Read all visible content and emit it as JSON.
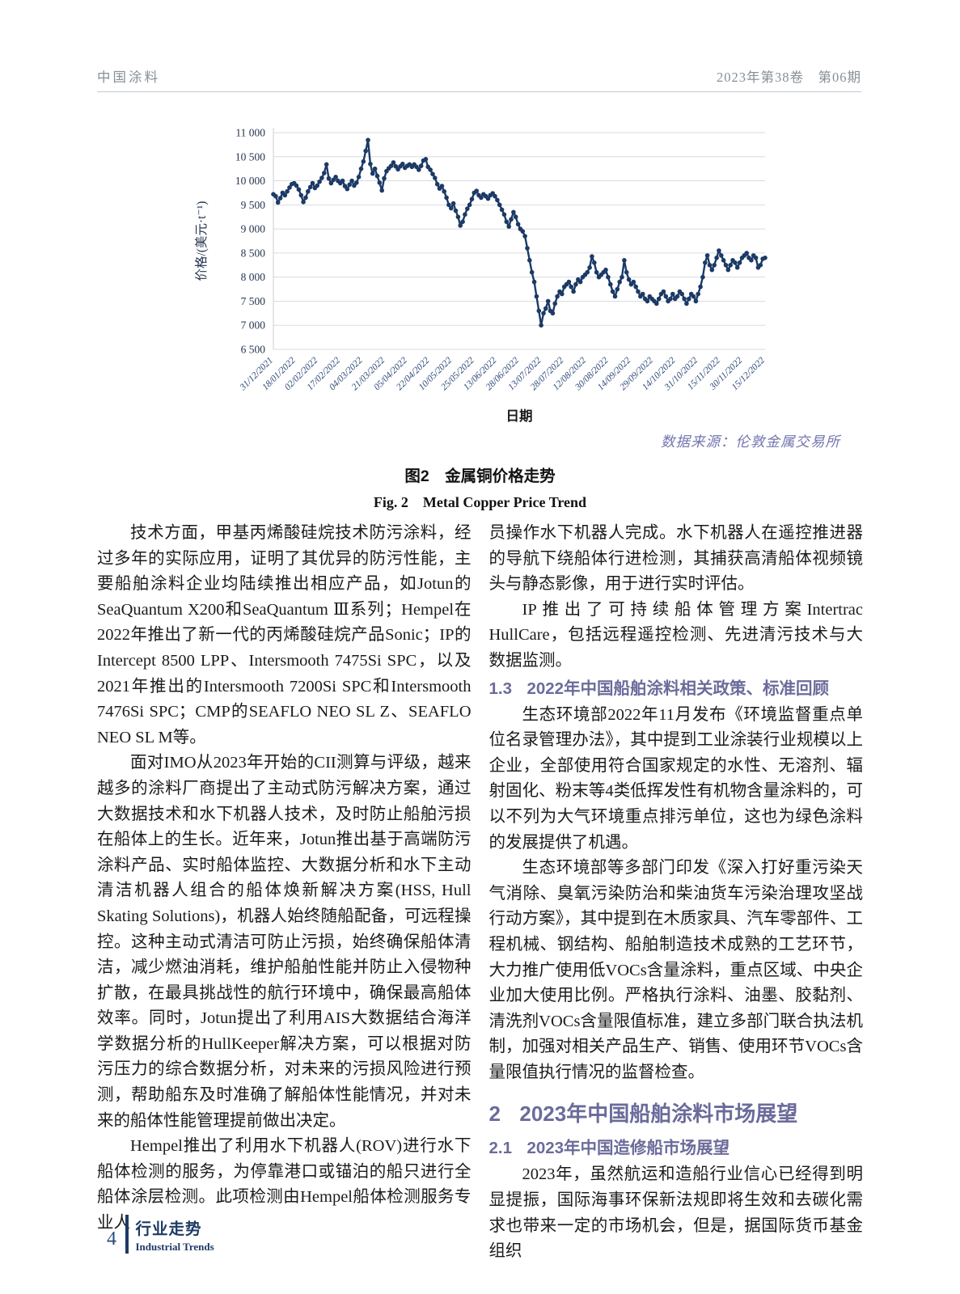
{
  "header": {
    "left": "中国涂料",
    "right": "2023年第38卷　第06期"
  },
  "figure": {
    "source_note": "数据来源：伦敦金属交易所",
    "caption_cn": "图2　金属铜价格走势",
    "caption_en": "Fig. 2　Metal Copper Price Trend"
  },
  "chart_data": {
    "type": "line",
    "title": "金属铜价格走势",
    "xlabel": "日期",
    "ylabel": "价格/(美元·t⁻¹)",
    "ylim": [
      6500,
      11000
    ],
    "ytick_step": 500,
    "ytick_labels": [
      "6 500",
      "7 000",
      "7 500",
      "8 000",
      "8 500",
      "9 000",
      "9 500",
      "10 000",
      "10 500",
      "11 000"
    ],
    "xtick_labels": [
      "31/12/2021",
      "18/01/2022",
      "02/02/2022",
      "17/02/2022",
      "04/03/2022",
      "21/03/2022",
      "05/04/2022",
      "22/04/2022",
      "10/05/2022",
      "25/05/2022",
      "13/06/2022",
      "28/06/2022",
      "13/07/2022",
      "28/07/2022",
      "12/08/2022",
      "30/08/2022",
      "14/09/2022",
      "29/09/2022",
      "14/10/2022",
      "31/10/2022",
      "15/11/2022",
      "30/11/2022",
      "15/12/2022"
    ],
    "grid": true,
    "legend": "none",
    "series": [
      {
        "name": "copper-price",
        "color": "#1c3a66",
        "values": [
          9720,
          9680,
          9550,
          9640,
          9750,
          9700,
          9780,
          9860,
          9930,
          9950,
          9900,
          9820,
          9700,
          9560,
          9650,
          9780,
          9870,
          9950,
          9850,
          9900,
          9980,
          10060,
          10160,
          10340,
          10050,
          9950,
          10020,
          10080,
          10000,
          9950,
          10000,
          9890,
          9830,
          9920,
          10000,
          9900,
          9960,
          10080,
          10250,
          10400,
          10620,
          10845,
          10350,
          10150,
          10250,
          10100,
          9960,
          9800,
          10050,
          10200,
          10260,
          10310,
          10380,
          10300,
          10240,
          10300,
          10350,
          10270,
          10310,
          10340,
          10290,
          10340,
          10290,
          10230,
          10310,
          10420,
          10450,
          10290,
          10230,
          10140,
          10060,
          9930,
          9840,
          9890,
          9780,
          9650,
          9500,
          9430,
          9530,
          9380,
          9250,
          9070,
          9150,
          9300,
          9420,
          9500,
          9620,
          9750,
          9790,
          9700,
          9650,
          9720,
          9680,
          9630,
          9700,
          9740,
          9680,
          9600,
          9500,
          9400,
          9300,
          9150,
          9050,
          9200,
          9350,
          9250,
          9100,
          9000,
          8950,
          8850,
          8600,
          8350,
          8100,
          7900,
          7600,
          7300,
          7000,
          7250,
          7350,
          7500,
          7300,
          7250,
          7450,
          7600,
          7700,
          7650,
          7800,
          7850,
          7900,
          7800,
          7700,
          7850,
          7950,
          7900,
          8000,
          8050,
          8100,
          8200,
          8430,
          8300,
          8100,
          8000,
          8050,
          8100,
          8150,
          8000,
          7850,
          7700,
          7600,
          7750,
          7900,
          8000,
          8350,
          8100,
          7950,
          7850,
          7900,
          7800,
          7700,
          7600,
          7650,
          7550,
          7500,
          7600,
          7550,
          7500,
          7450,
          7550,
          7650,
          7700,
          7600,
          7500,
          7550,
          7650,
          7550,
          7600,
          7700,
          7650,
          7550,
          7450,
          7550,
          7650,
          7600,
          7500,
          7650,
          7800,
          8000,
          8300,
          8450,
          8250,
          8150,
          8250,
          8400,
          8550,
          8450,
          8350,
          8250,
          8150,
          8250,
          8350,
          8300,
          8200,
          8300,
          8400,
          8450,
          8500,
          8400,
          8350,
          8450,
          8400,
          8200,
          8250,
          8380,
          8400
        ]
      }
    ]
  },
  "body": {
    "lc_p1": "技术方面，甲基丙烯酸硅烷技术防污涂料，经过多年的实际应用，证明了其优异的防污性能，主要船舶涂料企业均陆续推出相应产品，如Jotun的SeaQuantum X200和SeaQuantum Ⅲ系列；Hempel在2022年推出了新一代的丙烯酸硅烷产品Sonic；IP的Intercept 8500 LPP、Intersmooth 7475Si SPC，以及2021年推出的Intersmooth 7200Si SPC和Intersmooth 7476Si SPC；CMP的SEAFLO NEO SL Z、SEAFLO NEO SL M等。",
    "lc_p2": "面对IMO从2023年开始的CII测算与评级，越来越多的涂料厂商提出了主动式防污解决方案，通过大数据技术和水下机器人技术，及时防止船舶污损在船体上的生长。近年来，Jotun推出基于高端防污涂料产品、实时船体监控、大数据分析和水下主动清洁机器人组合的船体焕新解决方案(HSS, Hull Skating Solutions)，机器人始终随船配备，可远程操控。这种主动式清洁可防止污损，始终确保船体清洁，减少燃油消耗，维护船舶性能并防止入侵物种扩散，在最具挑战性的航行环境中，确保最高船体效率。同时，Jotun提出了利用AIS大数据结合海洋学数据分析的HullKeeper解决方案，可以根据对防污压力的综合数据分析，对未来的污损风险进行预测，帮助船东及时准确了解船体性能情况，并对未来的船体性能管理提前做出决定。",
    "lc_p3": "Hempel推出了利用水下机器人(ROV)进行水下船体检测的服务，为停靠港口或锚泊的船只进行全船体涂层检测。此项检测由Hempel船体检测服务专业人",
    "rc_p1": "员操作水下机器人完成。水下机器人在遥控推进器的导航下绕船体行进检测，其捕获高清船体视频镜头与静态影像，用于进行实时评估。",
    "rc_p2": "IP推出了可持续船体管理方案Intertrac HullCare，包括远程遥控检测、先进清污技术与大数据监测。",
    "h13": {
      "num": "1.3",
      "text": "2022年中国船舶涂料相关政策、标准回顾"
    },
    "rc_p3": "生态环境部2022年11月发布《环境监督重点单位名录管理办法》，其中提到工业涂装行业规模以上企业，全部使用符合国家规定的水性、无溶剂、辐射固化、粉末等4类低挥发性有机物含量涂料的，可以不列为大气环境重点排污单位，这也为绿色涂料的发展提供了机遇。",
    "rc_p4": "生态环境部等多部门印发《深入打好重污染天气消除、臭氧污染防治和柴油货车污染治理攻坚战行动方案》，其中提到在木质家具、汽车零部件、工程机械、钢结构、船舶制造技术成熟的工艺环节，大力推广使用低VOCs含量涂料，重点区域、中央企业加大使用比例。严格执行涂料、油墨、胶黏剂、清洗剂VOCs含量限值标准，建立多部门联合执法机制，加强对相关产品生产、销售、使用环节VOCs含量限值执行情况的监督检查。",
    "h2": {
      "num": "2",
      "text": "2023年中国船舶涂料市场展望"
    },
    "h21": {
      "num": "2.1",
      "text": "2023年中国造修船市场展望"
    },
    "rc_p5": "2023年，虽然航运和造船行业信心已经得到明显提振，国际海事环保新法规即将生效和去碳化需求也带来一定的市场机会，但是，据国际货币基金组织"
  },
  "footer": {
    "page_number": "4",
    "section_cn": "行业走势",
    "section_en": "Industrial Trends"
  }
}
